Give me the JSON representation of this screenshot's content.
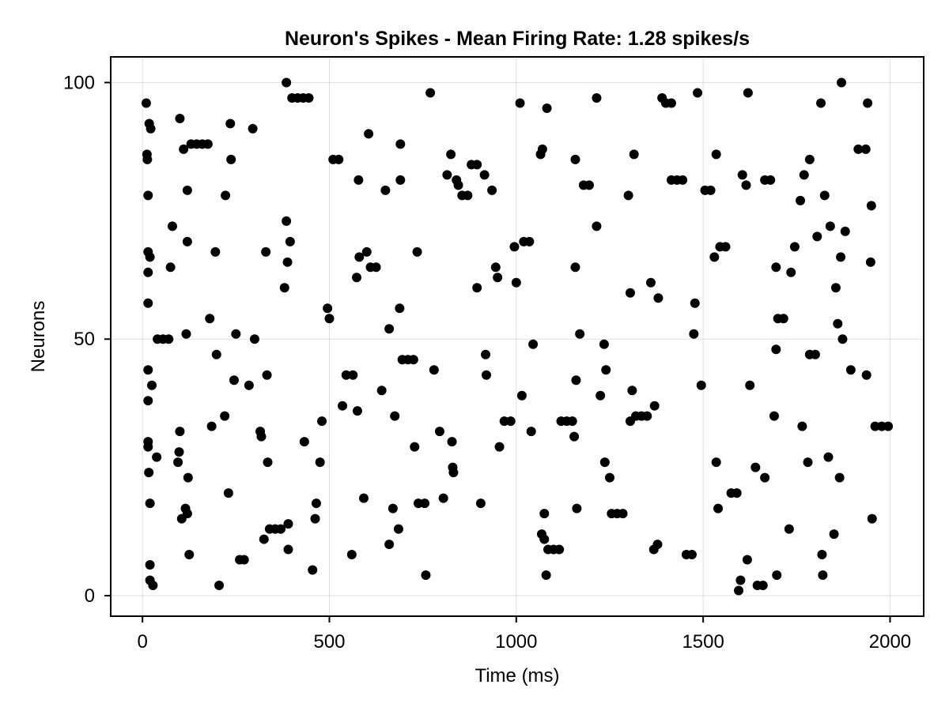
{
  "chart_data": {
    "type": "scatter",
    "title": "Neuron's Spikes - Mean Firing Rate: 1.28 spikes/s",
    "xlabel": "Time (ms)",
    "ylabel": "Neurons",
    "xlim": [
      -85,
      2090
    ],
    "ylim": [
      -4,
      105
    ],
    "xticks": [
      0,
      500,
      1000,
      1500,
      2000
    ],
    "yticks": [
      0,
      50,
      100
    ],
    "grid": true,
    "legend": "none",
    "marker_color": "#000000",
    "series": [
      {
        "values": [
          [
            10,
            96
          ],
          [
            12,
            86
          ],
          [
            13,
            85
          ],
          [
            15,
            78
          ],
          [
            15,
            67
          ],
          [
            15,
            63
          ],
          [
            15,
            57
          ],
          [
            15,
            44
          ],
          [
            15,
            38
          ],
          [
            15,
            30
          ],
          [
            15,
            29
          ],
          [
            17,
            24
          ],
          [
            18,
            92
          ],
          [
            20,
            66
          ],
          [
            20,
            18
          ],
          [
            20,
            6
          ],
          [
            20,
            3
          ],
          [
            22,
            91
          ],
          [
            25,
            41
          ],
          [
            28,
            2
          ],
          [
            38,
            27
          ],
          [
            40,
            50
          ],
          [
            55,
            50
          ],
          [
            70,
            50
          ],
          [
            75,
            64
          ],
          [
            80,
            72
          ],
          [
            95,
            26
          ],
          [
            98,
            28
          ],
          [
            100,
            32
          ],
          [
            100,
            93
          ],
          [
            105,
            15
          ],
          [
            110,
            87
          ],
          [
            115,
            17
          ],
          [
            117,
            51
          ],
          [
            120,
            79
          ],
          [
            120,
            69
          ],
          [
            120,
            16
          ],
          [
            122,
            23
          ],
          [
            125,
            8
          ],
          [
            130,
            88
          ],
          [
            145,
            88
          ],
          [
            160,
            88
          ],
          [
            175,
            88
          ],
          [
            180,
            54
          ],
          [
            185,
            33
          ],
          [
            195,
            67
          ],
          [
            198,
            47
          ],
          [
            205,
            2
          ],
          [
            220,
            35
          ],
          [
            222,
            78
          ],
          [
            230,
            20
          ],
          [
            235,
            92
          ],
          [
            237,
            85
          ],
          [
            245,
            42
          ],
          [
            250,
            51
          ],
          [
            260,
            7
          ],
          [
            272,
            7
          ],
          [
            285,
            41
          ],
          [
            295,
            91
          ],
          [
            300,
            50
          ],
          [
            315,
            32
          ],
          [
            318,
            31
          ],
          [
            325,
            11
          ],
          [
            330,
            67
          ],
          [
            333,
            43
          ],
          [
            335,
            26
          ],
          [
            340,
            13
          ],
          [
            355,
            13
          ],
          [
            370,
            13
          ],
          [
            380,
            60
          ],
          [
            385,
            100
          ],
          [
            385,
            73
          ],
          [
            388,
            65
          ],
          [
            390,
            14
          ],
          [
            390,
            9
          ],
          [
            395,
            69
          ],
          [
            400,
            97
          ],
          [
            415,
            97
          ],
          [
            430,
            97
          ],
          [
            433,
            30
          ],
          [
            445,
            97
          ],
          [
            455,
            5
          ],
          [
            462,
            15
          ],
          [
            465,
            18
          ],
          [
            475,
            26
          ],
          [
            480,
            34
          ],
          [
            495,
            56
          ],
          [
            500,
            54
          ],
          [
            510,
            85
          ],
          [
            525,
            85
          ],
          [
            535,
            37
          ],
          [
            545,
            43
          ],
          [
            560,
            8
          ],
          [
            563,
            43
          ],
          [
            573,
            62
          ],
          [
            575,
            36
          ],
          [
            578,
            81
          ],
          [
            580,
            66
          ],
          [
            592,
            19
          ],
          [
            600,
            67
          ],
          [
            605,
            90
          ],
          [
            610,
            64
          ],
          [
            625,
            64
          ],
          [
            640,
            40
          ],
          [
            650,
            79
          ],
          [
            660,
            10
          ],
          [
            660,
            52
          ],
          [
            670,
            17
          ],
          [
            675,
            35
          ],
          [
            685,
            13
          ],
          [
            688,
            56
          ],
          [
            690,
            88
          ],
          [
            690,
            81
          ],
          [
            695,
            46
          ],
          [
            710,
            46
          ],
          [
            725,
            46
          ],
          [
            728,
            29
          ],
          [
            735,
            67
          ],
          [
            738,
            18
          ],
          [
            755,
            18
          ],
          [
            758,
            4
          ],
          [
            770,
            98
          ],
          [
            780,
            44
          ],
          [
            795,
            32
          ],
          [
            805,
            19
          ],
          [
            815,
            82
          ],
          [
            825,
            86
          ],
          [
            828,
            30
          ],
          [
            830,
            25
          ],
          [
            832,
            24
          ],
          [
            840,
            81
          ],
          [
            845,
            80
          ],
          [
            855,
            78
          ],
          [
            870,
            78
          ],
          [
            880,
            84
          ],
          [
            895,
            84
          ],
          [
            895,
            60
          ],
          [
            905,
            18
          ],
          [
            915,
            82
          ],
          [
            918,
            47
          ],
          [
            920,
            43
          ],
          [
            935,
            79
          ],
          [
            945,
            64
          ],
          [
            950,
            62
          ],
          [
            955,
            29
          ],
          [
            968,
            34
          ],
          [
            985,
            34
          ],
          [
            995,
            68
          ],
          [
            1000,
            61
          ],
          [
            1010,
            96
          ],
          [
            1015,
            39
          ],
          [
            1020,
            69
          ],
          [
            1035,
            69
          ],
          [
            1040,
            32
          ],
          [
            1045,
            49
          ],
          [
            1065,
            86
          ],
          [
            1068,
            12
          ],
          [
            1070,
            87
          ],
          [
            1075,
            11
          ],
          [
            1075,
            16
          ],
          [
            1080,
            4
          ],
          [
            1082,
            95
          ],
          [
            1085,
            9
          ],
          [
            1100,
            9
          ],
          [
            1115,
            9
          ],
          [
            1120,
            34
          ],
          [
            1135,
            34
          ],
          [
            1150,
            34
          ],
          [
            1155,
            31
          ],
          [
            1158,
            85
          ],
          [
            1158,
            64
          ],
          [
            1160,
            42
          ],
          [
            1162,
            17
          ],
          [
            1170,
            51
          ],
          [
            1180,
            80
          ],
          [
            1195,
            80
          ],
          [
            1215,
            72
          ],
          [
            1215,
            97
          ],
          [
            1225,
            39
          ],
          [
            1235,
            49
          ],
          [
            1237,
            26
          ],
          [
            1240,
            44
          ],
          [
            1250,
            23
          ],
          [
            1255,
            16
          ],
          [
            1270,
            16
          ],
          [
            1285,
            16
          ],
          [
            1300,
            78
          ],
          [
            1305,
            59
          ],
          [
            1305,
            34
          ],
          [
            1310,
            40
          ],
          [
            1315,
            86
          ],
          [
            1320,
            35
          ],
          [
            1335,
            35
          ],
          [
            1350,
            35
          ],
          [
            1360,
            61
          ],
          [
            1368,
            9
          ],
          [
            1370,
            37
          ],
          [
            1378,
            10
          ],
          [
            1380,
            58
          ],
          [
            1390,
            97
          ],
          [
            1400,
            96
          ],
          [
            1415,
            96
          ],
          [
            1415,
            81
          ],
          [
            1430,
            81
          ],
          [
            1445,
            81
          ],
          [
            1455,
            8
          ],
          [
            1470,
            8
          ],
          [
            1475,
            51
          ],
          [
            1478,
            57
          ],
          [
            1485,
            98
          ],
          [
            1495,
            41
          ],
          [
            1505,
            79
          ],
          [
            1520,
            79
          ],
          [
            1530,
            66
          ],
          [
            1535,
            86
          ],
          [
            1535,
            26
          ],
          [
            1540,
            17
          ],
          [
            1545,
            68
          ],
          [
            1560,
            68
          ],
          [
            1575,
            20
          ],
          [
            1590,
            20
          ],
          [
            1595,
            1
          ],
          [
            1600,
            3
          ],
          [
            1605,
            82
          ],
          [
            1615,
            80
          ],
          [
            1618,
            7
          ],
          [
            1620,
            98
          ],
          [
            1625,
            41
          ],
          [
            1640,
            25
          ],
          [
            1645,
            2
          ],
          [
            1660,
            2
          ],
          [
            1665,
            23
          ],
          [
            1665,
            81
          ],
          [
            1680,
            81
          ],
          [
            1690,
            35
          ],
          [
            1695,
            48
          ],
          [
            1695,
            64
          ],
          [
            1697,
            4
          ],
          [
            1700,
            54
          ],
          [
            1715,
            54
          ],
          [
            1730,
            13
          ],
          [
            1735,
            63
          ],
          [
            1745,
            68
          ],
          [
            1760,
            77
          ],
          [
            1765,
            33
          ],
          [
            1770,
            82
          ],
          [
            1780,
            26
          ],
          [
            1785,
            85
          ],
          [
            1785,
            47
          ],
          [
            1800,
            47
          ],
          [
            1805,
            70
          ],
          [
            1815,
            96
          ],
          [
            1818,
            8
          ],
          [
            1820,
            4
          ],
          [
            1825,
            78
          ],
          [
            1835,
            27
          ],
          [
            1840,
            72
          ],
          [
            1850,
            12
          ],
          [
            1855,
            60
          ],
          [
            1860,
            53
          ],
          [
            1865,
            23
          ],
          [
            1868,
            66
          ],
          [
            1870,
            100
          ],
          [
            1873,
            50
          ],
          [
            1880,
            71
          ],
          [
            1895,
            44
          ],
          [
            1915,
            87
          ],
          [
            1935,
            87
          ],
          [
            1937,
            43
          ],
          [
            1940,
            96
          ],
          [
            1948,
            65
          ],
          [
            1950,
            76
          ],
          [
            1952,
            15
          ],
          [
            1960,
            33
          ],
          [
            1978,
            33
          ],
          [
            1995,
            33
          ]
        ]
      }
    ]
  }
}
